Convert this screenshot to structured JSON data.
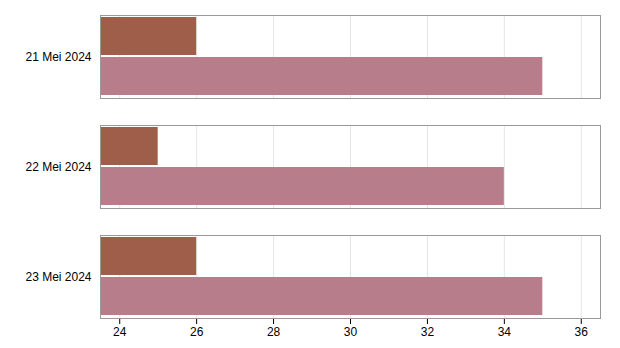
{
  "chart_data": {
    "type": "bar",
    "orientation": "horizontal",
    "categories": [
      "21 Mei 2024",
      "22 Mei 2024",
      "23 Mei 2024"
    ],
    "series": [
      {
        "color": "#9e5e4a",
        "values": [
          26,
          25,
          26
        ]
      },
      {
        "color": "#b87d8a",
        "values": [
          35,
          34,
          35
        ]
      }
    ],
    "xlim": [
      23.5,
      36.5
    ],
    "xticks": [
      24,
      26,
      28,
      30,
      32,
      34,
      36
    ],
    "grid": true
  }
}
